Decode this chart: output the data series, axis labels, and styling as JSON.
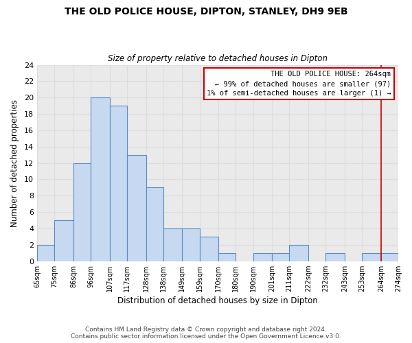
{
  "title": "THE OLD POLICE HOUSE, DIPTON, STANLEY, DH9 9EB",
  "subtitle": "Size of property relative to detached houses in Dipton",
  "xlabel": "Distribution of detached houses by size in Dipton",
  "ylabel": "Number of detached properties",
  "bin_edges": [
    65,
    75,
    86,
    96,
    107,
    117,
    128,
    138,
    149,
    159,
    170,
    180,
    190,
    201,
    211,
    222,
    232,
    243,
    253,
    264,
    274
  ],
  "bar_heights": [
    2,
    5,
    12,
    20,
    19,
    13,
    9,
    4,
    4,
    3,
    1,
    0,
    1,
    1,
    2,
    0,
    1,
    0,
    1,
    1
  ],
  "bar_color": "#c6d9f0",
  "bar_edge_color": "#5b8cc8",
  "reference_line_x": 264,
  "reference_line_color": "#cc0000",
  "ylim": [
    0,
    24
  ],
  "yticks": [
    0,
    2,
    4,
    6,
    8,
    10,
    12,
    14,
    16,
    18,
    20,
    22,
    24
  ],
  "annotation_title": "THE OLD POLICE HOUSE: 264sqm",
  "annotation_line1": "← 99% of detached houses are smaller (97)",
  "annotation_line2": "1% of semi-detached houses are larger (1) →",
  "annotation_box_edge_color": "#cc0000",
  "footer_line1": "Contains HM Land Registry data © Crown copyright and database right 2024.",
  "footer_line2": "Contains public sector information licensed under the Open Government Licence v3.0.",
  "background_color": "#ffffff",
  "grid_color": "#dddddd",
  "axes_bg_color": "#eaeaea"
}
